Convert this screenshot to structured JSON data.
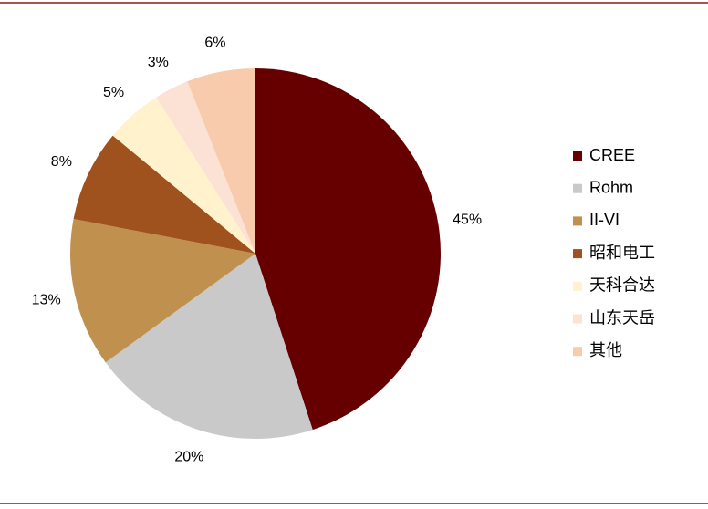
{
  "chart_data": {
    "type": "pie",
    "categories": [
      "CREE",
      "Rohm",
      "II-VI",
      "昭和电工",
      "天科合达",
      "山东天岳",
      "其他"
    ],
    "values": [
      45,
      20,
      13,
      8,
      5,
      3,
      6
    ],
    "value_labels": [
      "45%",
      "20%",
      "13%",
      "8%",
      "5%",
      "3%",
      "6%"
    ],
    "colors": [
      "#660000",
      "#c9c9c9",
      "#c0904f",
      "#a0521e",
      "#fff2cc",
      "#fbe2d5",
      "#f8cbad"
    ],
    "legend": "right"
  }
}
